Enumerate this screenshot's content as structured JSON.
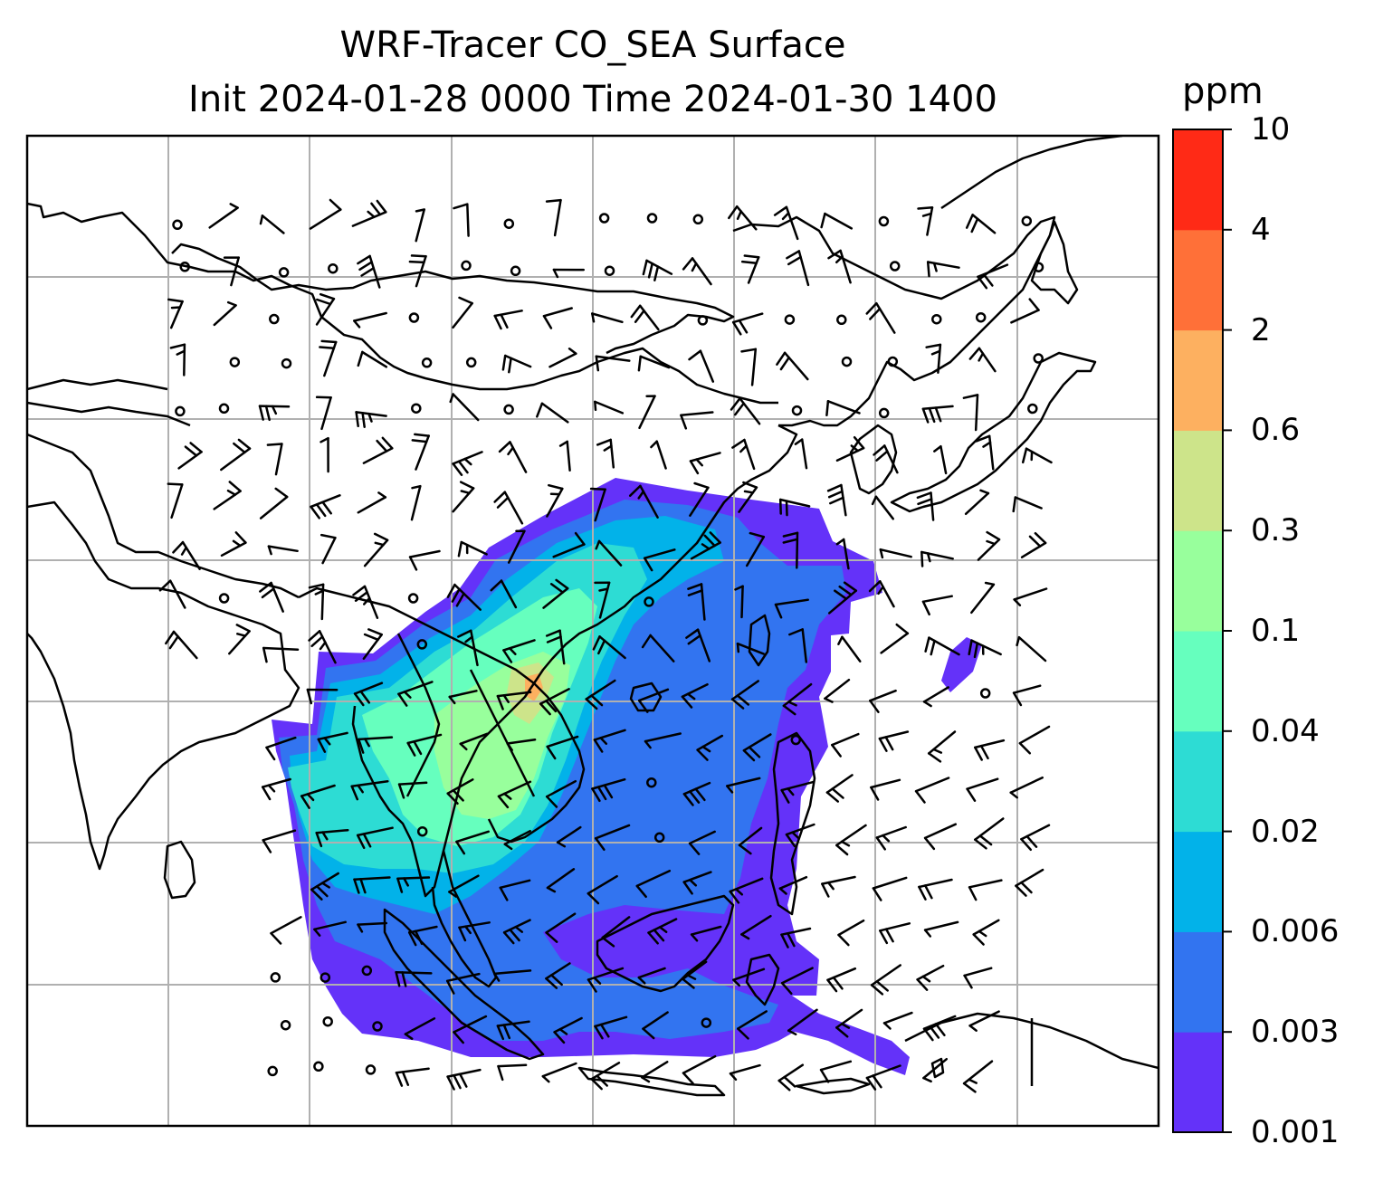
{
  "title": {
    "line1": "WRF-Tracer CO_SEA Surface",
    "line2": "Init 2024-01-28 0000 Time 2024-01-30 1400"
  },
  "colorbar": {
    "unit": "ppm",
    "levels": [
      "0.001",
      "0.003",
      "0.006",
      "0.02",
      "0.04",
      "0.1",
      "0.3",
      "0.6",
      "2",
      "4",
      "10"
    ],
    "colors": [
      "#6432f9",
      "#3274f0",
      "#02b2e9",
      "#2ddcd4",
      "#66ffbe",
      "#98ff9c",
      "#cde48a",
      "#fdb060",
      "#ff7038",
      "#ff2a16"
    ]
  },
  "map": {
    "grid": "on",
    "gridlines": 7,
    "wind_barbs": "on",
    "coastlines": "on"
  }
}
